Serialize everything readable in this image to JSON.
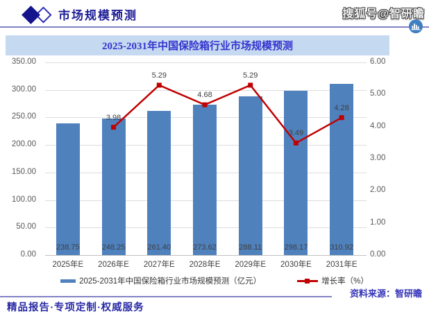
{
  "header": {
    "title": "市场规模预测",
    "watermark": "搜狐号@智研瞻"
  },
  "footer": {
    "source": "资料来源：智研瞻",
    "slogan": "精品报告·专项定制·权威服务"
  },
  "colors": {
    "bar": "#4f81bd",
    "line": "#c00000",
    "title_bg": "#c5d9f1",
    "title_text": "#3434cd",
    "accent_navy": "#1c1c96",
    "separator": "#8080c4",
    "grid": "#dddddd",
    "axis_text": "#595959",
    "label_text": "#3f3f3f"
  },
  "chart_data": {
    "type": "bar+line",
    "title": "2025-2031年中国保险箱行业市场规模预测",
    "categories": [
      "2025年E",
      "2026年E",
      "2027年E",
      "2028年E",
      "2029年E",
      "2030年E",
      "2031年E"
    ],
    "series": [
      {
        "name": "2025-2031年中国保险箱行业市场规模预测（亿元）",
        "type": "bar",
        "axis": "left",
        "color": "#4f81bd",
        "values": [
          238.75,
          248.25,
          261.4,
          273.62,
          288.11,
          298.17,
          310.92
        ]
      },
      {
        "name": "增长率（%）",
        "type": "line",
        "axis": "right",
        "color": "#c00000",
        "values": [
          null,
          3.98,
          5.29,
          4.68,
          5.29,
          3.49,
          4.28
        ]
      }
    ],
    "left_axis": {
      "min": 0,
      "max": 350,
      "step": 50
    },
    "right_axis": {
      "min": 0,
      "max": 6,
      "step": 1
    },
    "grid": true,
    "legend_position": "bottom"
  }
}
